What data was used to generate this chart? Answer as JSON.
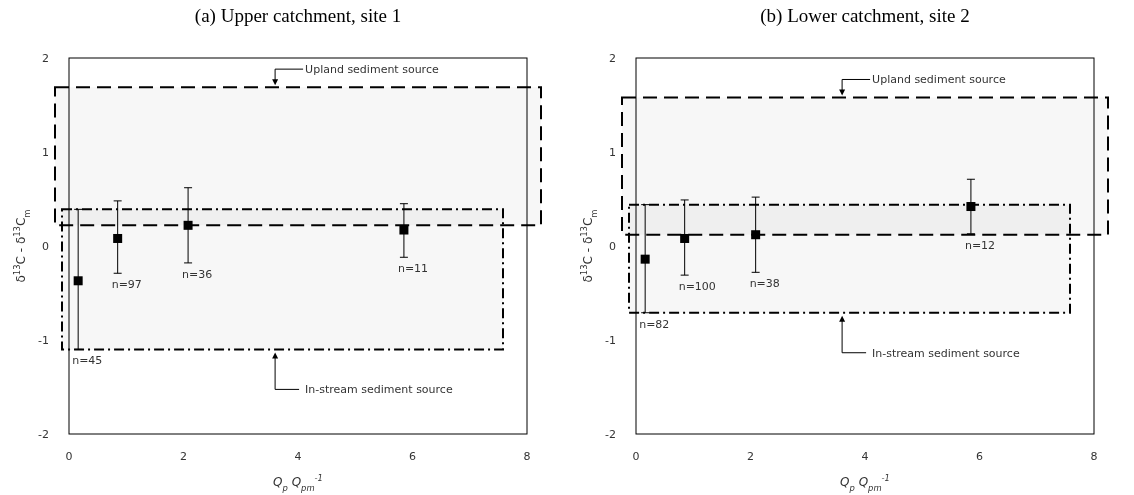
{
  "chart_data": [
    {
      "type": "scatter",
      "title": "(a) Upper catchment, site 1",
      "xlabel": "Q$_{p}$ Q$_{pm}$$^{-1}$",
      "ylabel": "δ$^{13}$C - δ$^{13}$C$_{m}$",
      "xlim": [
        0,
        8
      ],
      "xticks": [
        0,
        2,
        4,
        6,
        8
      ],
      "ylim": [
        -2,
        2
      ],
      "yticks": [
        -2,
        -1,
        0,
        1,
        2
      ],
      "marker": "square",
      "grid": false,
      "series": [
        {
          "color": "#000000",
          "x": [
            0.16,
            0.85,
            2.08,
            5.85
          ],
          "values": [
            -0.37,
            0.08,
            0.22,
            0.17
          ],
          "errors": [
            [
              -1.1,
              0.39
            ],
            [
              -0.29,
              0.48
            ],
            [
              -0.18,
              0.62
            ],
            [
              -0.12,
              0.45
            ]
          ]
        }
      ],
      "bands": [
        {
          "axis": "y",
          "from": 0.22,
          "to": 1.69,
          "label": "Upland sediment source",
          "color": "#000000"
        },
        {
          "axis": "y",
          "from": -1.1,
          "to": 0.39,
          "label": "In-stream sediment source",
          "color": "#000000"
        }
      ],
      "annotations": [
        {
          "text": "n=45",
          "x": 0.16,
          "y": -1.1
        },
        {
          "text": "n=97",
          "x": 0.85,
          "y": -0.29
        },
        {
          "text": "n=36",
          "x": 2.08,
          "y": -0.18
        },
        {
          "text": "n=11",
          "x": 5.85,
          "y": -0.12
        }
      ]
    },
    {
      "type": "scatter",
      "title": "(b) Lower catchment, site 2",
      "xlabel": "Q$_{p}$ Q$_{pm}$$^{-1}$",
      "ylabel": "δ$^{13}$C - δ$^{13}$C$_{m}$",
      "xlim": [
        0,
        8
      ],
      "xticks": [
        0,
        2,
        4,
        6,
        8
      ],
      "ylim": [
        -2,
        2
      ],
      "yticks": [
        -2,
        -1,
        0,
        1,
        2
      ],
      "marker": "square",
      "grid": false,
      "series": [
        {
          "color": "#000000",
          "x": [
            0.16,
            0.85,
            2.09,
            5.85
          ],
          "values": [
            -0.14,
            0.08,
            0.12,
            0.42
          ],
          "errors": [
            [
              -0.71,
              0.44
            ],
            [
              -0.31,
              0.49
            ],
            [
              -0.28,
              0.52
            ],
            [
              0.13,
              0.71
            ]
          ]
        }
      ],
      "bands": [
        {
          "axis": "y",
          "from": 0.12,
          "to": 1.58,
          "label": "Upland sediment source",
          "color": "#000000"
        },
        {
          "axis": "y",
          "from": -0.71,
          "to": 0.44,
          "label": "In-stream sediment source",
          "color": "#000000"
        }
      ],
      "annotations": [
        {
          "text": "n=82",
          "x": 0.16,
          "y": -0.71
        },
        {
          "text": "n=100",
          "x": 0.85,
          "y": -0.31
        },
        {
          "text": "n=38",
          "x": 2.09,
          "y": -0.28
        },
        {
          "text": "n=12",
          "x": 5.85,
          "y": 0.13
        }
      ]
    }
  ]
}
